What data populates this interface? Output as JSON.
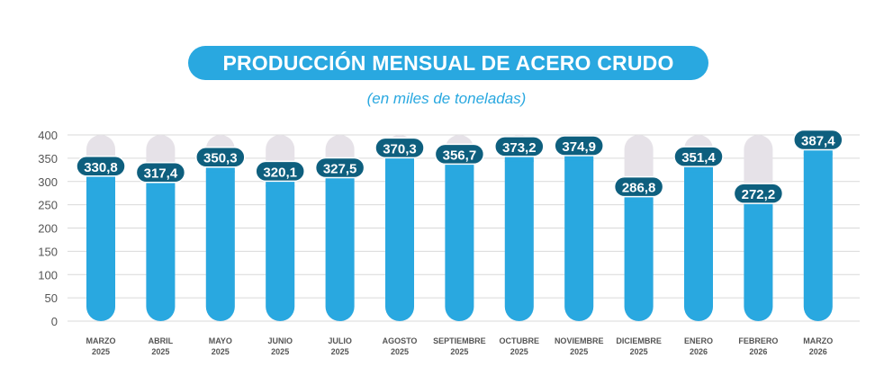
{
  "chart_data": {
    "type": "bar",
    "title": "PRODUCCIÓN MENSUAL DE ACERO CRUDO",
    "subtitle": "(en miles de toneladas)",
    "categories": [
      [
        "MARZO",
        "2025"
      ],
      [
        "ABRIL",
        "2025"
      ],
      [
        "MAYO",
        "2025"
      ],
      [
        "JUNIO",
        "2025"
      ],
      [
        "JULIO",
        "2025"
      ],
      [
        "AGOSTO",
        "2025"
      ],
      [
        "SEPTIEMBRE",
        "2025"
      ],
      [
        "OCTUBRE",
        "2025"
      ],
      [
        "NOVIEMBRE",
        "2025"
      ],
      [
        "DICIEMBRE",
        "2025"
      ],
      [
        "ENERO",
        "2026"
      ],
      [
        "FEBRERO",
        "2026"
      ],
      [
        "MARZO",
        "2026"
      ]
    ],
    "values": [
      330.8,
      317.4,
      350.3,
      320.1,
      327.5,
      370.3,
      356.7,
      373.2,
      374.9,
      286.8,
      351.4,
      272.2,
      387.4
    ],
    "value_labels": [
      "330,8",
      "317,4",
      "350,3",
      "320,1",
      "327,5",
      "370,3",
      "356,7",
      "373,2",
      "374,9",
      "286,8",
      "351,4",
      "272,2",
      "387,4"
    ],
    "ylim": [
      0,
      400
    ],
    "yticks": [
      0,
      50,
      100,
      150,
      200,
      250,
      300,
      350,
      400
    ],
    "grid": true,
    "colors": {
      "bar": "#29a8e0",
      "track": "#e6e2e8",
      "label_bg": "#0e5f7e",
      "grid": "#d9d9d9"
    }
  }
}
